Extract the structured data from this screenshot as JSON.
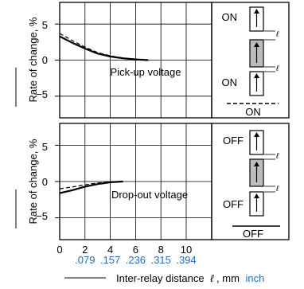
{
  "chart_data": [
    {
      "type": "line",
      "title": "",
      "annotation": "Pick-up voltage",
      "xlabel": "Inter-relay distance ℓ, mm inch",
      "ylabel": "Rate of change, %",
      "xlim": [
        0,
        12
      ],
      "ylim": [
        -8,
        8
      ],
      "y_ticks": [
        "5",
        "0",
        "−5"
      ],
      "grid": true,
      "series": [
        {
          "style": "solid",
          "x": [
            0,
            1,
            2,
            3,
            4,
            5,
            6,
            7
          ],
          "y": [
            3.3,
            2.4,
            1.6,
            0.9,
            0.5,
            0.25,
            0.1,
            0.0
          ]
        },
        {
          "style": "dashed",
          "x": [
            0,
            1,
            2,
            3,
            4,
            5,
            6,
            7
          ],
          "y": [
            3.7,
            2.7,
            1.8,
            1.05,
            0.6,
            0.3,
            0.12,
            0.0
          ]
        }
      ],
      "side_labels": {
        "top": "ON",
        "middle": "ON",
        "bottom": "ON"
      }
    },
    {
      "type": "line",
      "title": "",
      "annotation": "Drop-out voltage",
      "xlabel": "Inter-relay distance ℓ, mm inch",
      "ylabel": "Rate of change, %",
      "xlim": [
        0,
        12
      ],
      "ylim": [
        -8,
        8
      ],
      "y_ticks": [
        "5",
        "0",
        "−5"
      ],
      "grid": true,
      "series": [
        {
          "style": "solid",
          "x": [
            0,
            1,
            2,
            3,
            4,
            5
          ],
          "y": [
            -1.6,
            -1.2,
            -0.7,
            -0.35,
            -0.1,
            0.0
          ]
        },
        {
          "style": "dashed",
          "x": [
            0,
            1,
            2,
            3,
            4,
            5
          ],
          "y": [
            -1.0,
            -0.75,
            -0.45,
            -0.2,
            -0.05,
            0.0
          ]
        }
      ],
      "side_labels": {
        "top": "OFF",
        "middle": "OFF",
        "bottom": "OFF"
      }
    }
  ],
  "x_axis": {
    "mm_ticks": [
      "0",
      "2",
      "4",
      "6",
      "8",
      "10"
    ],
    "mm_values": [
      0,
      2,
      4,
      6,
      8,
      10
    ],
    "inch_ticks": [
      ".079",
      ".157",
      ".236",
      ".315",
      ".394"
    ],
    "inch_values": [
      2,
      4,
      6,
      8,
      10
    ],
    "label_main": "Inter-relay distance",
    "label_symbol": "ℓ",
    "label_mm": ", mm",
    "label_inch": "inch"
  },
  "colors": {
    "line": "#000000",
    "inch": "#1f6fbf",
    "relay_fill": "#bdbdbd"
  }
}
